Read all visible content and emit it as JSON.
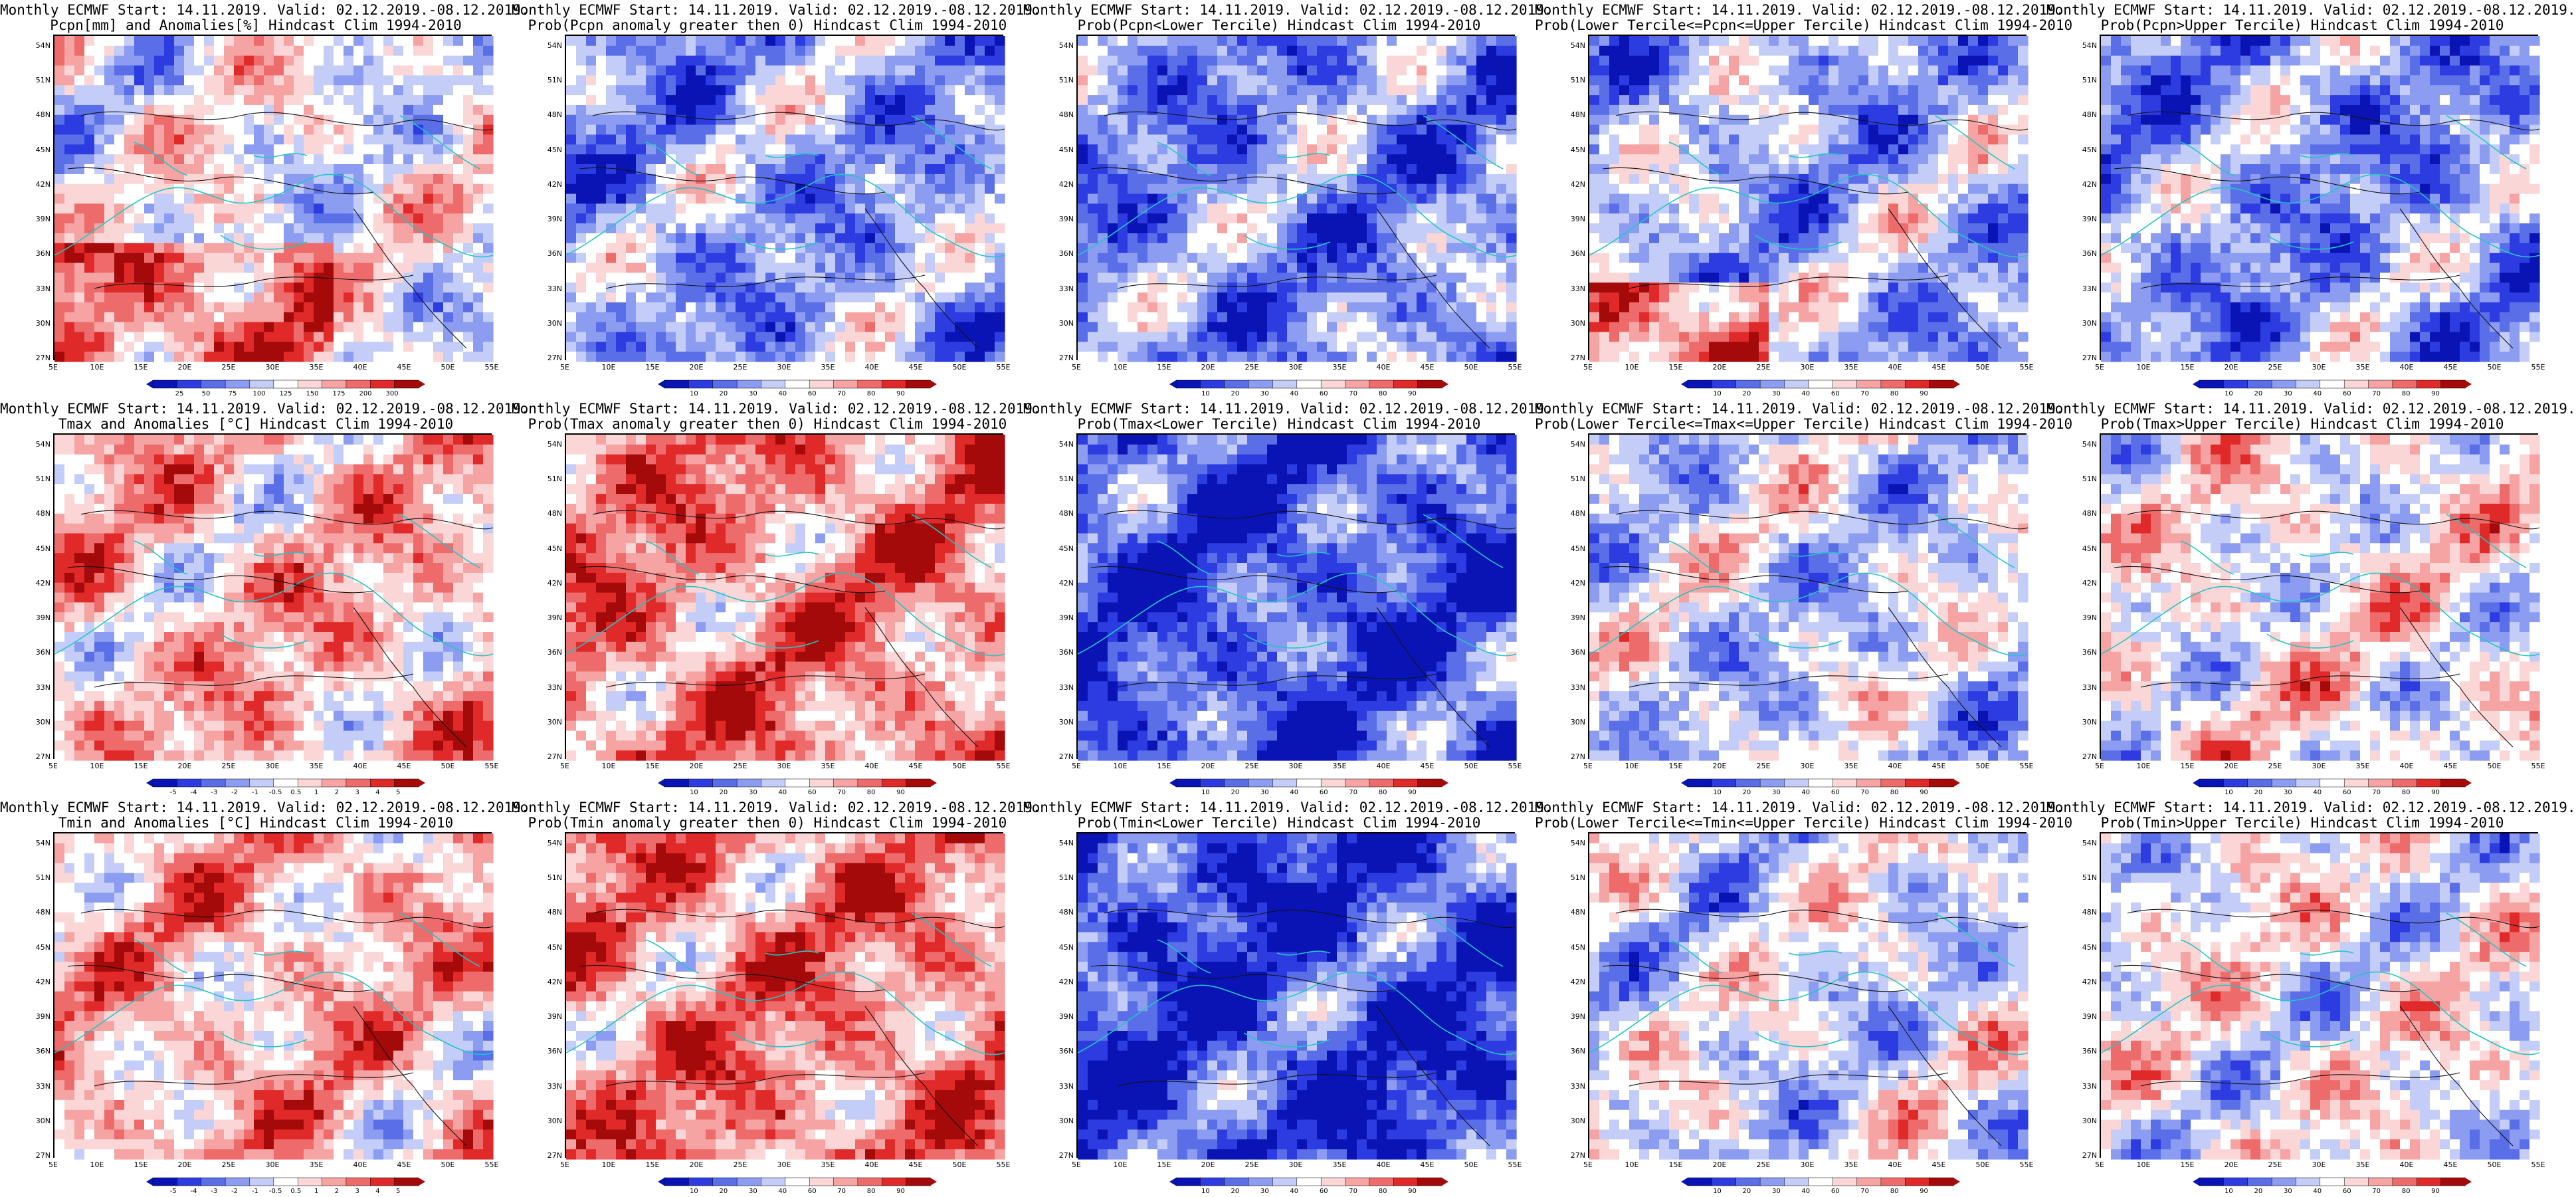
{
  "palette": {
    "dry_blue": [
      "#0a14b4",
      "#2d3ce0",
      "#5a6ee8",
      "#8c9cf0",
      "#c3cdf7",
      "#ffffff",
      "#fbd6d6",
      "#f5a3a3",
      "#ee6b6b",
      "#e02a2a",
      "#a40a0a"
    ]
  },
  "lat_labels": [
    "54N",
    "51N",
    "48N",
    "45N",
    "42N",
    "39N",
    "36N",
    "33N",
    "30N",
    "27N"
  ],
  "lon_labels": [
    "5E",
    "10E",
    "15E",
    "20E",
    "25E",
    "30E",
    "35E",
    "40E",
    "45E",
    "50E",
    "55E"
  ],
  "panels": [
    {
      "title1": "Monthly ECMWF Start: 14.11.2019. Valid: 02.12.2019.-08.12.2019.",
      "title2": "Pcpn[mm] and Anomalies[%] Hindcast Clim 1994-2010",
      "cbar_ticks": [
        "25",
        "50",
        "75",
        "100",
        "125",
        "150",
        "175",
        "200",
        "300"
      ],
      "bias": 0.0,
      "seed": 3
    },
    {
      "title1": "Monthly ECMWF Start: 14.11.2019. Valid: 02.12.2019.-08.12.2019.",
      "title2": "Prob(Pcpn anomaly greater then 0) Hindcast Clim 1994-2010",
      "cbar_ticks": [
        "10",
        "20",
        "30",
        "40",
        "60",
        "70",
        "80",
        "90"
      ],
      "bias": -0.35,
      "seed": 7
    },
    {
      "title1": "Monthly ECMWF Start: 14.11.2019. Valid: 02.12.2019.-08.12.2019.",
      "title2": "Prob(Pcpn<Lower Tercile) Hindcast Clim 1994-2010",
      "cbar_ticks": [
        "10",
        "20",
        "30",
        "40",
        "60",
        "70",
        "80",
        "90"
      ],
      "bias": -0.45,
      "seed": 11
    },
    {
      "title1": "Monthly ECMWF Start: 14.11.2019. Valid: 02.12.2019.-08.12.2019.",
      "title2": "Prob(Lower Tercile<=Pcpn<=Upper Tercile) Hindcast Clim 1994-2010",
      "cbar_ticks": [
        "10",
        "20",
        "30",
        "40",
        "60",
        "70",
        "80",
        "90"
      ],
      "bias": -0.3,
      "seed": 13
    },
    {
      "title1": "Monthly ECMWF Start: 14.11.2019. Valid: 02.12.2019.-08.12.2019.",
      "title2": "Prob(Pcpn>Upper Tercile) Hindcast Clim 1994-2010",
      "cbar_ticks": [
        "10",
        "20",
        "30",
        "40",
        "60",
        "70",
        "80",
        "90"
      ],
      "bias": -0.4,
      "seed": 17
    },
    {
      "title1": "Monthly ECMWF Start: 14.11.2019. Valid: 02.12.2019.-08.12.2019.",
      "title2": "Tmax and Anomalies [°C] Hindcast Clim 1994-2010",
      "cbar_ticks": [
        "-5",
        "-4",
        "-3",
        "-2",
        "-1",
        "-0.5",
        "0.5",
        "1",
        "2",
        "3",
        "4",
        "5"
      ],
      "bias": 0.3,
      "seed": 19
    },
    {
      "title1": "Monthly ECMWF Start: 14.11.2019. Valid: 02.12.2019.-08.12.2019.",
      "title2": "Prob(Tmax anomaly greater then 0) Hindcast Clim 1994-2010",
      "cbar_ticks": [
        "10",
        "20",
        "30",
        "40",
        "60",
        "70",
        "80",
        "90"
      ],
      "bias": 0.5,
      "seed": 23
    },
    {
      "title1": "Monthly ECMWF Start: 14.11.2019. Valid: 02.12.2019.-08.12.2019.",
      "title2": "Prob(Tmax<Lower Tercile) Hindcast Clim 1994-2010",
      "cbar_ticks": [
        "10",
        "20",
        "30",
        "40",
        "60",
        "70",
        "80",
        "90"
      ],
      "bias": -0.7,
      "seed": 29
    },
    {
      "title1": "Monthly ECMWF Start: 14.11.2019. Valid: 02.12.2019.-08.12.2019.",
      "title2": "Prob(Lower Tercile<=Tmax<=Upper Tercile) Hindcast Clim 1994-2010",
      "cbar_ticks": [
        "10",
        "20",
        "30",
        "40",
        "60",
        "70",
        "80",
        "90"
      ],
      "bias": -0.15,
      "seed": 31
    },
    {
      "title1": "Monthly ECMWF Start: 14.11.2019. Valid: 02.12.2019.-08.12.2019.",
      "title2": "Prob(Tmax>Upper Tercile) Hindcast Clim 1994-2010",
      "cbar_ticks": [
        "10",
        "20",
        "30",
        "40",
        "60",
        "70",
        "80",
        "90"
      ],
      "bias": 0.05,
      "seed": 37
    },
    {
      "title1": "Monthly ECMWF Start: 14.11.2019. Valid: 02.12.2019.-08.12.2019.",
      "title2": "Tmin and Anomalies [°C] Hindcast Clim 1994-2010",
      "cbar_ticks": [
        "-5",
        "-4",
        "-3",
        "-2",
        "-1",
        "-0.5",
        "0.5",
        "1",
        "2",
        "3",
        "4",
        "5"
      ],
      "bias": 0.3,
      "seed": 41
    },
    {
      "title1": "Monthly ECMWF Start: 14.11.2019. Valid: 02.12.2019.-08.12.2019.",
      "title2": "Prob(Tmin anomaly greater then 0) Hindcast Clim 1994-2010",
      "cbar_ticks": [
        "10",
        "20",
        "30",
        "40",
        "60",
        "70",
        "80",
        "90"
      ],
      "bias": 0.5,
      "seed": 43
    },
    {
      "title1": "Monthly ECMWF Start: 14.11.2019. Valid: 02.12.2019.-08.12.2019.",
      "title2": "Prob(Tmin<Lower Tercile) Hindcast Clim 1994-2010",
      "cbar_ticks": [
        "10",
        "20",
        "30",
        "40",
        "60",
        "70",
        "80",
        "90"
      ],
      "bias": -0.75,
      "seed": 47
    },
    {
      "title1": "Monthly ECMWF Start: 14.11.2019. Valid: 02.12.2019.-08.12.2019.",
      "title2": "Prob(Lower Tercile<=Tmin<=Upper Tercile) Hindcast Clim 1994-2010",
      "cbar_ticks": [
        "10",
        "20",
        "30",
        "40",
        "60",
        "70",
        "80",
        "90"
      ],
      "bias": -0.1,
      "seed": 53
    },
    {
      "title1": "Monthly ECMWF Start: 14.11.2019. Valid: 02.12.2019.-08.12.2019.",
      "title2": "Prob(Tmin>Upper Tercile) Hindcast Clim 1994-2010",
      "cbar_ticks": [
        "10",
        "20",
        "30",
        "40",
        "60",
        "70",
        "80",
        "90"
      ],
      "bias": 0.0,
      "seed": 59
    }
  ]
}
